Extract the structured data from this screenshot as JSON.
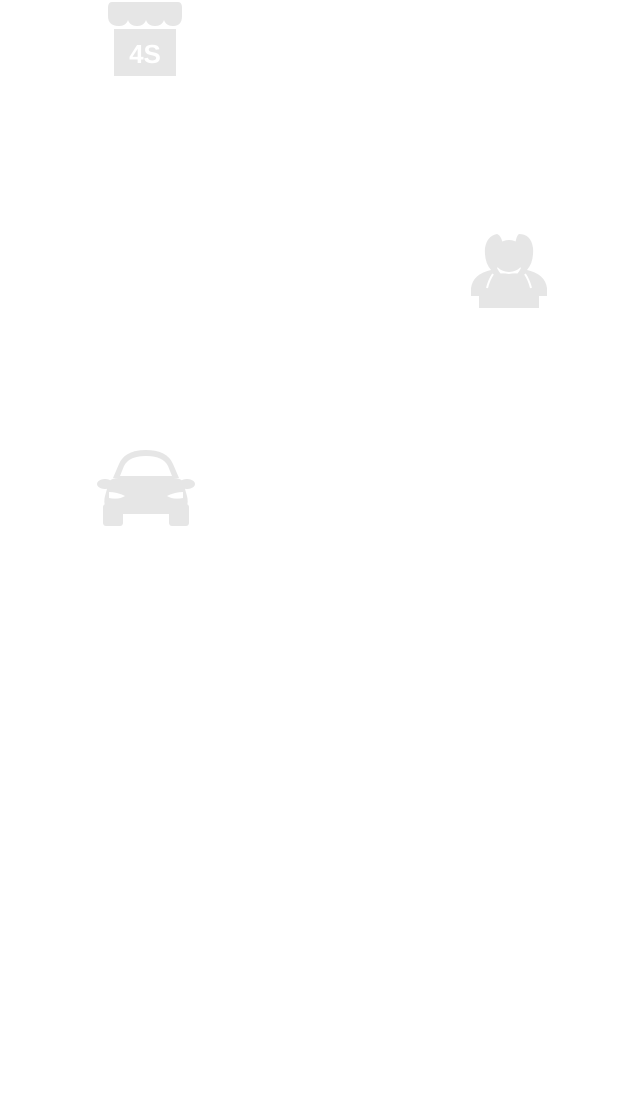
{
  "icons": {
    "store": {
      "name": "4s-store-icon",
      "label": "4S"
    },
    "users": {
      "name": "users-icon"
    },
    "car": {
      "name": "car-icon"
    }
  },
  "colors": {
    "background": "#ffffff",
    "icon_fill": "#e6e6e6"
  }
}
